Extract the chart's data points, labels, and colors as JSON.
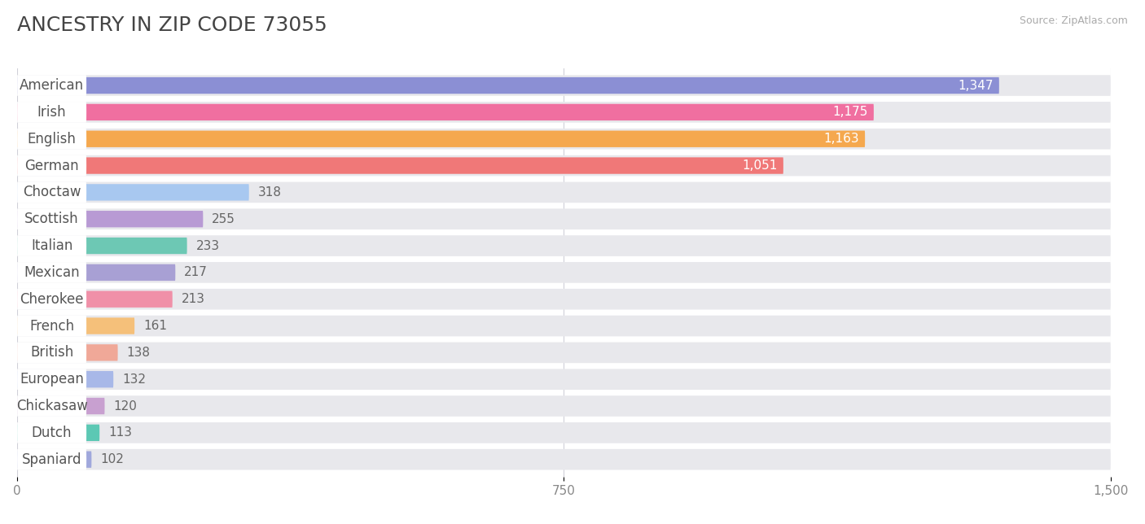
{
  "title": "ANCESTRY IN ZIP CODE 73055",
  "source": "Source: ZipAtlas.com",
  "categories": [
    "American",
    "Irish",
    "English",
    "German",
    "Choctaw",
    "Scottish",
    "Italian",
    "Mexican",
    "Cherokee",
    "French",
    "British",
    "European",
    "Chickasaw",
    "Dutch",
    "Spaniard"
  ],
  "values": [
    1347,
    1175,
    1163,
    1051,
    318,
    255,
    233,
    217,
    213,
    161,
    138,
    132,
    120,
    113,
    102
  ],
  "bar_colors": [
    "#8b8fd4",
    "#f06fa0",
    "#f5a84e",
    "#f07878",
    "#a8c8f0",
    "#b89ad4",
    "#6dc8b4",
    "#a8a0d4",
    "#f090a8",
    "#f5c07a",
    "#f0a898",
    "#a8b8e8",
    "#c8a0d0",
    "#5cc8b4",
    "#a0a8dc"
  ],
  "xlim": [
    0,
    1500
  ],
  "xticks": [
    0,
    750,
    1500
  ],
  "background_color": "#ffffff",
  "bar_bg_color": "#e8e8ec",
  "title_fontsize": 18,
  "value_fontsize": 11,
  "label_fontsize": 12
}
